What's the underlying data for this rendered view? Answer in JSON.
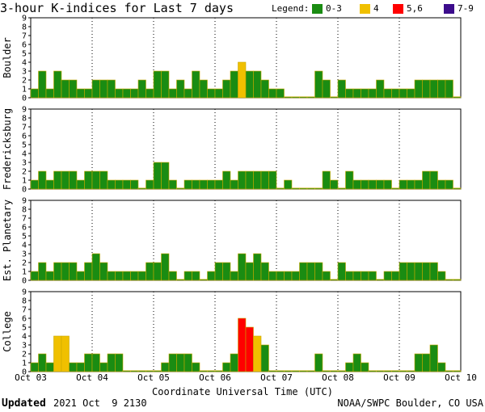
{
  "title": "3-hour K-indices for Last 7 days",
  "legend": {
    "label": "Legend:",
    "entries": [
      {
        "label": "0-3",
        "color": "#1a8c12"
      },
      {
        "label": "4",
        "color": "#f0c000"
      },
      {
        "label": "5,6",
        "color": "#ff0000"
      },
      {
        "label": "7-9",
        "color": "#3c0c8c"
      }
    ]
  },
  "xlabel": "Coordinate Universal Time (UTC)",
  "footer": {
    "updated_label": "Updated",
    "updated_value": "2021 Oct  9 2130",
    "credit": "NOAA/SWPC Boulder, CO USA"
  },
  "chart_data": {
    "type": "bar",
    "x_ticks": [
      "Oct 03",
      "Oct 04",
      "Oct 05",
      "Oct 06",
      "Oct 07",
      "Oct 08",
      "Oct 09",
      "Oct 10"
    ],
    "ylim": [
      0,
      9
    ],
    "y_ticks": [
      0,
      1,
      2,
      3,
      4,
      5,
      6,
      7,
      8,
      9
    ],
    "bar_interval_hours": 3,
    "color_thresholds": {
      "0-3": "#1a8c12",
      "4": "#f0c000",
      "5-6": "#ff0000",
      "7-9": "#3c0c8c"
    },
    "series": [
      {
        "name": "Boulder",
        "values": [
          1,
          3,
          1,
          3,
          2,
          2,
          1,
          1,
          2,
          2,
          2,
          1,
          1,
          1,
          2,
          1,
          3,
          3,
          1,
          2,
          1,
          3,
          2,
          1,
          1,
          2,
          3,
          4,
          3,
          3,
          2,
          1,
          1,
          0,
          0,
          0,
          0,
          3,
          2,
          0,
          2,
          1,
          1,
          1,
          1,
          2,
          1,
          1,
          1,
          1,
          2,
          2,
          2,
          2,
          2,
          0
        ]
      },
      {
        "name": "Fredericksburg",
        "values": [
          1,
          2,
          1,
          2,
          2,
          2,
          1,
          2,
          2,
          2,
          1,
          1,
          1,
          1,
          0,
          1,
          3,
          3,
          1,
          0,
          1,
          1,
          1,
          1,
          1,
          2,
          1,
          2,
          2,
          2,
          2,
          2,
          0,
          1,
          0,
          0,
          0,
          0,
          2,
          1,
          0,
          2,
          1,
          1,
          1,
          1,
          1,
          0,
          1,
          1,
          1,
          2,
          2,
          1,
          1,
          0
        ]
      },
      {
        "name": "Est. Planetary",
        "values": [
          1,
          2,
          1,
          2,
          2,
          2,
          1,
          2,
          3,
          2,
          1,
          1,
          1,
          1,
          1,
          2,
          2,
          3,
          1,
          0,
          1,
          1,
          0,
          1,
          2,
          2,
          1,
          3,
          2,
          3,
          2,
          1,
          1,
          1,
          1,
          2,
          2,
          2,
          1,
          0,
          2,
          1,
          1,
          1,
          1,
          0,
          1,
          1,
          2,
          2,
          2,
          2,
          2,
          1,
          0,
          0
        ]
      },
      {
        "name": "College",
        "values": [
          1,
          2,
          1,
          4,
          4,
          1,
          1,
          2,
          2,
          1,
          2,
          2,
          0,
          0,
          0,
          0,
          0,
          1,
          2,
          2,
          2,
          1,
          0,
          0,
          0,
          1,
          2,
          6,
          5,
          4,
          3,
          0,
          0,
          0,
          0,
          0,
          0,
          2,
          0,
          0,
          0,
          1,
          2,
          1,
          0,
          0,
          0,
          0,
          0,
          0,
          2,
          2,
          3,
          1,
          0,
          0
        ]
      }
    ]
  }
}
